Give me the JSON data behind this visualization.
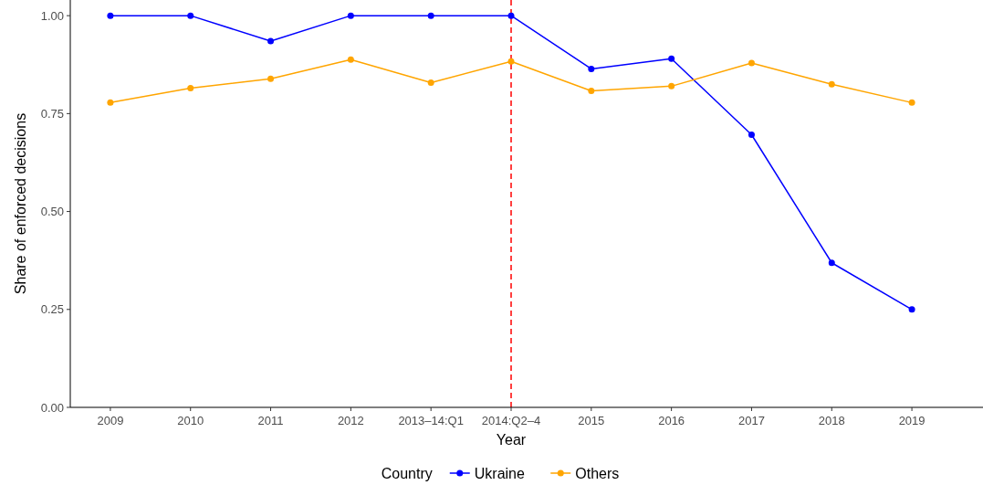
{
  "chart_data": {
    "type": "line",
    "xlabel": "Year",
    "ylabel": "Share of enforced decisions",
    "legend_title": "Country",
    "categories": [
      "2009",
      "2010",
      "2011",
      "2012",
      "2013–14:Q1",
      "2014:Q2–4",
      "2015",
      "2016",
      "2017",
      "2018",
      "2019"
    ],
    "series": [
      {
        "name": "Ukraine",
        "color": "#0000ff",
        "values": [
          1.0,
          1.0,
          0.935,
          1.0,
          1.0,
          1.0,
          0.864,
          0.89,
          0.696,
          0.369,
          0.25
        ]
      },
      {
        "name": "Others",
        "color": "#ffa500",
        "values": [
          0.778,
          0.815,
          0.839,
          0.888,
          0.829,
          0.883,
          0.808,
          0.82,
          0.879,
          0.825,
          0.778
        ]
      }
    ],
    "ylim": [
      0,
      1.04
    ],
    "yticks": [
      {
        "value": 0,
        "label": "0.00"
      },
      {
        "value": 0.25,
        "label": "0.25"
      },
      {
        "value": 0.5,
        "label": "0.50"
      },
      {
        "value": 0.75,
        "label": "0.75"
      },
      {
        "value": 1,
        "label": "1.00"
      }
    ],
    "ref_lines": [
      {
        "axis": "x",
        "value": "2014:Q2–4",
        "color": "#ff0000",
        "line_style": "dashed"
      }
    ],
    "grid": false,
    "legend": "bottom",
    "marker": "circle",
    "line_style": "solid"
  }
}
